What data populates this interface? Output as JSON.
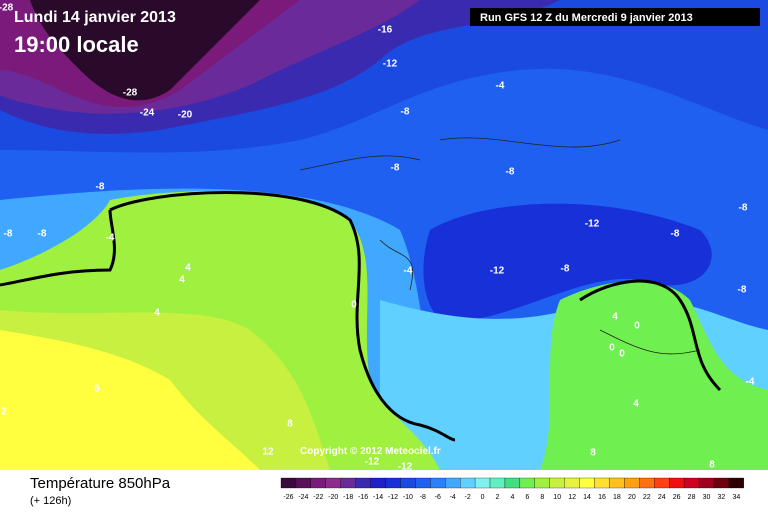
{
  "header": {
    "date": "Lundi 14 janvier 2013",
    "time": "19:00 locale",
    "run": "Run GFS 12 Z du Mercredi 9 janvier 2013"
  },
  "copyright": "Copyright © 2012 Meteociel.fr",
  "footer": {
    "title": "Température 850hPa",
    "lead": "(+ 126h)"
  },
  "map": {
    "contour_labels": [
      "-28",
      "-16",
      "-12",
      "-4",
      "-28",
      "-24",
      "-20",
      "-8",
      "-8",
      "-8",
      "-8",
      "-12",
      "-8",
      "-8",
      "-8",
      "-4",
      "-8",
      "-4",
      "-12",
      "-8",
      "4",
      "4",
      "-8",
      "4",
      "0",
      "4",
      "0",
      "0",
      "0",
      "-4",
      "8",
      "2",
      "4",
      "8",
      "12",
      "-12",
      "-12",
      "8",
      "8"
    ]
  },
  "legend": {
    "labels": [
      -26,
      -24,
      -22,
      -20,
      -18,
      -16,
      -14,
      -12,
      -10,
      -8,
      -6,
      -4,
      -2,
      0,
      2,
      4,
      6,
      8,
      10,
      12,
      14,
      16,
      18,
      20,
      22,
      24,
      26,
      28,
      30,
      32,
      34
    ],
    "colors": [
      "#3a0a3a",
      "#5a0f5a",
      "#7a1a7a",
      "#8f2a8f",
      "#6a2a9a",
      "#3a2ab0",
      "#2020c8",
      "#1830d8",
      "#1a4ae0",
      "#2060f0",
      "#2a80f8",
      "#40a8ff",
      "#60d0ff",
      "#80f0f0",
      "#60f0c0",
      "#40e080",
      "#70f050",
      "#a0f040",
      "#c8f040",
      "#e8f040",
      "#ffff40",
      "#ffe030",
      "#ffc020",
      "#ffa010",
      "#ff7010",
      "#ff4010",
      "#f01010",
      "#d00020",
      "#a00020",
      "#700010",
      "#300000"
    ]
  }
}
